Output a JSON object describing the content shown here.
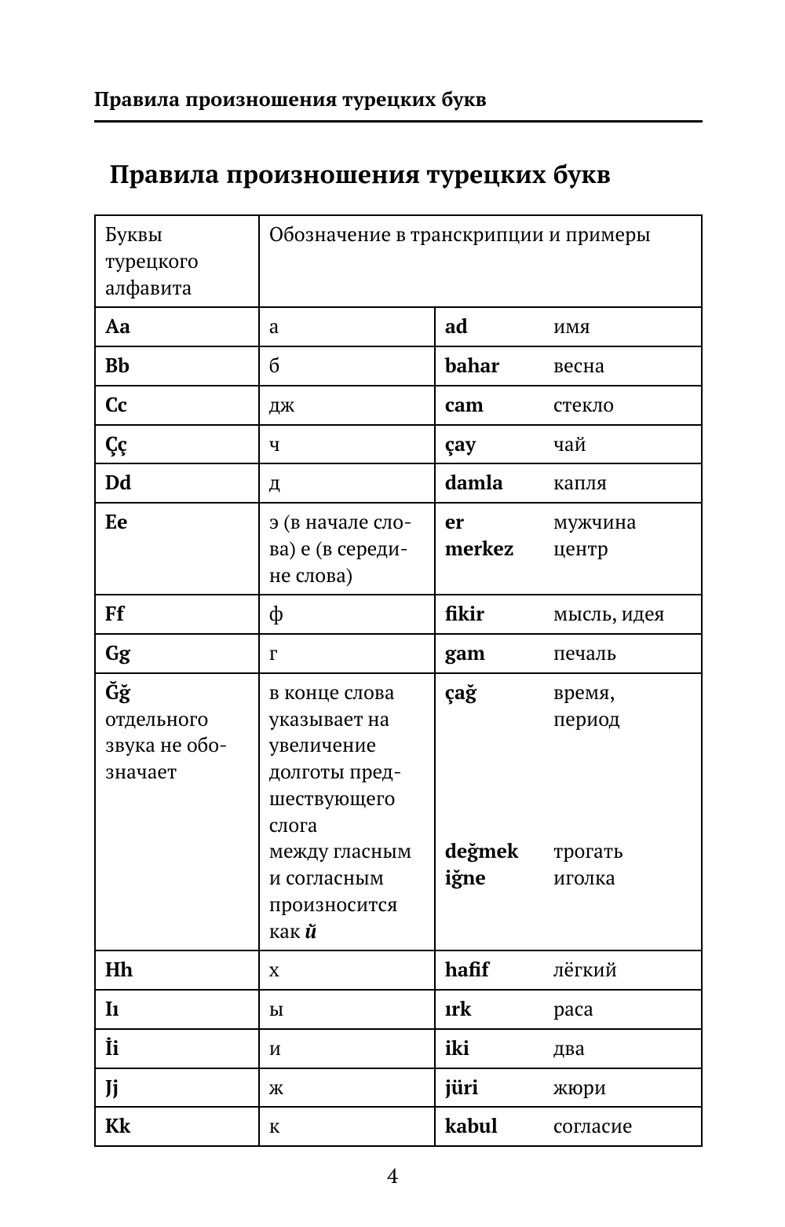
{
  "running_head": "Правила произношения турецких букв",
  "title": "Правила произношения турецких букв",
  "page_number": "4",
  "header": {
    "col1": "Буквы турецкого алфавита",
    "col23": "Обозначение в транскрипции и примеры"
  },
  "rows": [
    {
      "letter": "Aa",
      "letter_extra": "",
      "transcription_html": "а",
      "example_html": "<span class='b'>ad</span>",
      "translation_html": "имя"
    },
    {
      "letter": "Bb",
      "letter_extra": "",
      "transcription_html": "б",
      "example_html": "<span class='b'>bahar</span>",
      "translation_html": "весна"
    },
    {
      "letter": "Cc",
      "letter_extra": "",
      "transcription_html": "дж",
      "example_html": "<span class='b'>cam</span>",
      "translation_html": "стекло"
    },
    {
      "letter": "Çç",
      "letter_extra": "",
      "transcription_html": "ч",
      "example_html": "<span class='b'>çay</span>",
      "translation_html": "чай"
    },
    {
      "letter": "Dd",
      "letter_extra": "",
      "transcription_html": "д",
      "example_html": "<span class='b'>damla</span>",
      "translation_html": "капля"
    },
    {
      "letter": "Ee",
      "letter_extra": "",
      "transcription_html": "э (в начале сло-<br>ва) е (в середи-<br>не слова)",
      "example_html": "<span class='b'>er</span><br><span class='b'>merkez</span>",
      "translation_html": "мужчина<br>центр"
    },
    {
      "letter": "Ff",
      "letter_extra": "",
      "transcription_html": "ф",
      "example_html": "<span class='b'>fikir</span>",
      "translation_html": "мысль, идея"
    },
    {
      "letter": "Gg",
      "letter_extra": "",
      "transcription_html": "г",
      "example_html": "<span class='b'>gam</span>",
      "translation_html": "печаль"
    },
    {
      "letter": "Ğğ",
      "letter_extra": "отдельного звука не обо-<br>значает",
      "transcription_html": "в конце слова указывает на увеличение долготы пред-<br>шествующего слога<br>между гласным и согласным произносится как <span class='b i'>й</span>",
      "example_html": "<span class='b'>çağ</span><br><br><br><br><br><br><span class='b'>değmek</span><br><span class='b'>iğne</span>",
      "translation_html": "время,<br>период<br><br><br><br><br>трогать<br>иголка"
    },
    {
      "letter": "Hh",
      "letter_extra": "",
      "transcription_html": "х",
      "example_html": "<span class='b'>hafif</span>",
      "translation_html": "лёгкий"
    },
    {
      "letter": "Iı",
      "letter_extra": "",
      "transcription_html": "ы",
      "example_html": "<span class='b'>ırk</span>",
      "translation_html": "раса"
    },
    {
      "letter": "İi",
      "letter_extra": "",
      "transcription_html": "и",
      "example_html": "<span class='b'>iki</span>",
      "translation_html": "два"
    },
    {
      "letter": "Jj",
      "letter_extra": "",
      "transcription_html": "ж",
      "example_html": "<span class='b'>jüri</span>",
      "translation_html": "жюри"
    },
    {
      "letter": "Kk",
      "letter_extra": "",
      "transcription_html": "к",
      "example_html": "<span class='b'>kabul</span>",
      "translation_html": "согласие"
    }
  ]
}
